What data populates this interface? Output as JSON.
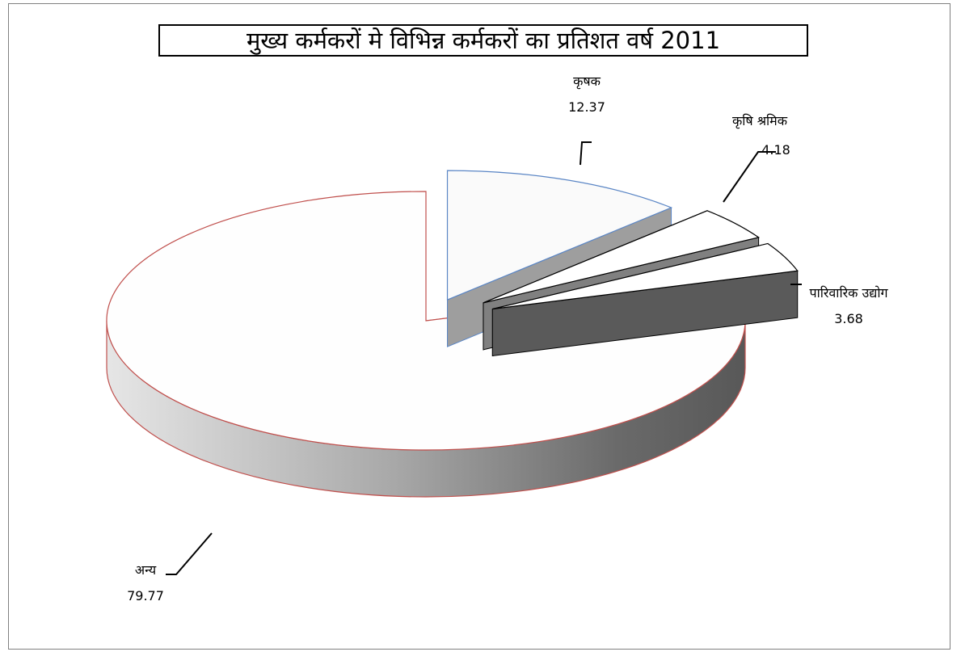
{
  "chart_data": {
    "type": "pie",
    "title": "मुख्य कर्मकरों मे विभिन्न कर्मकरों का प्रतिशत वर्ष 2011",
    "slices": [
      {
        "name": "कृषक",
        "value": 12.37
      },
      {
        "name": "कृषि श्रमिक",
        "value": 4.18
      },
      {
        "name": "पारिवारिक उद्योग",
        "value": 3.68
      },
      {
        "name": "अन्य",
        "value": 79.77
      }
    ],
    "style": "3d-exploded"
  }
}
